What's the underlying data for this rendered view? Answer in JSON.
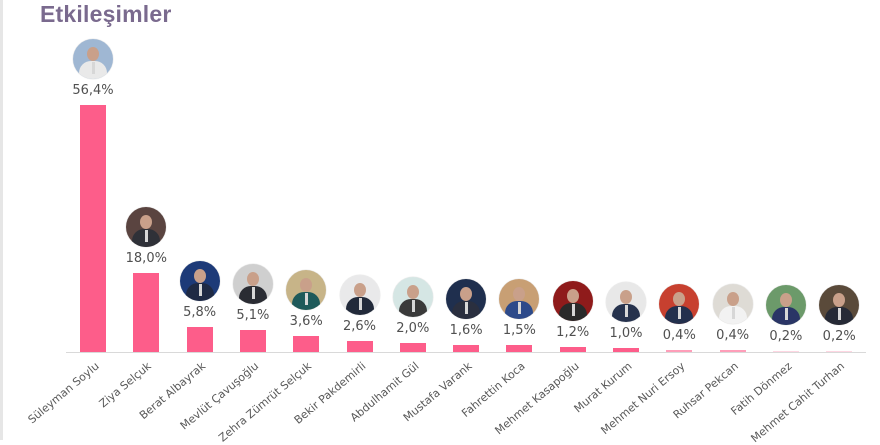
{
  "title": "Etkileşimler",
  "chart_data": {
    "type": "bar",
    "title": "Etkileşimler",
    "xlabel": "",
    "ylabel": "",
    "ylim": [
      0,
      56.4
    ],
    "grid": false,
    "legend": null,
    "bar_color": "#fd5d8a",
    "categories": [
      "Süleyman Soylu",
      "Ziya Selçuk",
      "Berat Albayrak",
      "Mevlüt Çavuşoğlu",
      "Zehra Zümrüt Selçuk",
      "Bekir Pakdemirli",
      "Abdulhamit Gül",
      "Mustafa Varank",
      "Fahrettin Koca",
      "Mehmet Kasapoğlu",
      "Murat Kurum",
      "Mehmet Nuri Ersoy",
      "Ruhsar Pekcan",
      "Fatih Dönmez",
      "Mehmet Cahit Turhan"
    ],
    "values": [
      56.4,
      18.0,
      5.8,
      5.1,
      3.6,
      2.6,
      2.0,
      1.6,
      1.5,
      1.2,
      1.0,
      0.4,
      0.4,
      0.2,
      0.2
    ],
    "value_labels": [
      "56,4%",
      "18,0%",
      "5,8%",
      "5,1%",
      "3,6%",
      "2,6%",
      "2,0%",
      "1,6%",
      "1,5%",
      "1,2%",
      "1,0%",
      "0,4%",
      "0,4%",
      "0,2%",
      "0,2%"
    ],
    "annotations": "Each bar is topped with a circular portrait photo of the person"
  },
  "avatars": [
    {
      "bg": "#9fb7d3",
      "suit": "#e9e9e9"
    },
    {
      "bg": "#5a4440",
      "suit": "#2f3138"
    },
    {
      "bg": "#1d3a78",
      "suit": "#1f2a44"
    },
    {
      "bg": "#cfcfcf",
      "suit": "#2a2c33"
    },
    {
      "bg": "#c7b488",
      "suit": "#1e5a5a"
    },
    {
      "bg": "#e9e9ea",
      "suit": "#222a3a"
    },
    {
      "bg": "#d5e6e4",
      "suit": "#3a3a3a"
    },
    {
      "bg": "#1f2f4e",
      "suit": "#2a2f3f"
    },
    {
      "bg": "#c89f74",
      "suit": "#2d4a8a"
    },
    {
      "bg": "#8f1b1b",
      "suit": "#2a2a2a"
    },
    {
      "bg": "#e8e8e8",
      "suit": "#26324d"
    },
    {
      "bg": "#c7402f",
      "suit": "#23304d"
    },
    {
      "bg": "#dedbd5",
      "suit": "#f2f2f2"
    },
    {
      "bg": "#6c9a6a",
      "suit": "#2a3566"
    },
    {
      "bg": "#5a4a3a",
      "suit": "#262a36"
    }
  ]
}
